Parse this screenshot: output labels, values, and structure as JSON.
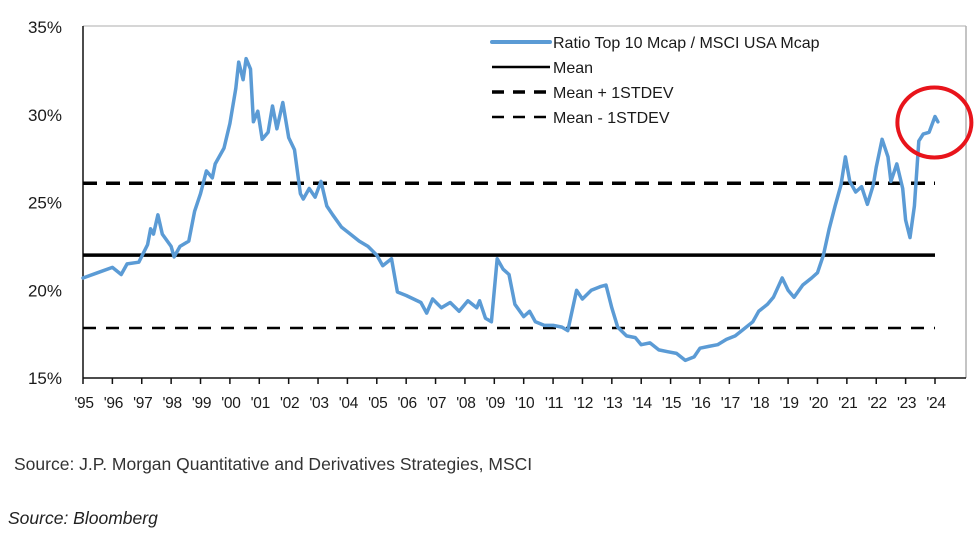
{
  "chart_data": {
    "type": "line",
    "title": "",
    "xlabel": "",
    "ylabel": "",
    "ylim": [
      15,
      35
    ],
    "xlim": [
      1995,
      2024
    ],
    "y_ticks": [
      "15%",
      "20%",
      "25%",
      "30%",
      "35%"
    ],
    "y_tick_values": [
      15,
      20,
      25,
      30,
      35
    ],
    "x_ticks": [
      "'95",
      "'96",
      "'97",
      "'98",
      "'99",
      "'00",
      "'01",
      "'02",
      "'03",
      "'04",
      "'05",
      "'06",
      "'07",
      "'08",
      "'09",
      "'10",
      "'11",
      "'12",
      "'13",
      "'14",
      "'15",
      "'16",
      "'17",
      "'18",
      "'19",
      "'20",
      "'21",
      "'22",
      "'23",
      "'24"
    ],
    "x_tick_values": [
      1995,
      1996,
      1997,
      1998,
      1999,
      2000,
      2001,
      2002,
      2003,
      2004,
      2005,
      2006,
      2007,
      2008,
      2009,
      2010,
      2011,
      2012,
      2013,
      2014,
      2015,
      2016,
      2017,
      2018,
      2019,
      2020,
      2021,
      2022,
      2023,
      2024
    ],
    "grid": false,
    "legend_position": "top-right",
    "series": [
      {
        "name": "Ratio Top 10 Mcap / MSCI USA Mcap",
        "color": "#5b9bd5",
        "style": "solid",
        "x": [
          1995.0,
          1995.5,
          1996.0,
          1996.3,
          1996.5,
          1996.9,
          1997.2,
          1997.3,
          1997.4,
          1997.55,
          1997.7,
          1998.0,
          1998.1,
          1998.3,
          1998.6,
          1998.8,
          1999.0,
          1999.2,
          1999.4,
          1999.5,
          1999.8,
          2000.0,
          2000.2,
          2000.3,
          2000.45,
          2000.55,
          2000.7,
          2000.8,
          2000.95,
          2001.1,
          2001.3,
          2001.45,
          2001.6,
          2001.8,
          2002.0,
          2002.2,
          2002.4,
          2002.5,
          2002.7,
          2002.9,
          2003.1,
          2003.3,
          2003.5,
          2003.8,
          2004.1,
          2004.4,
          2004.7,
          2005.0,
          2005.2,
          2005.5,
          2005.7,
          2006.0,
          2006.5,
          2006.7,
          2006.9,
          2007.2,
          2007.5,
          2007.8,
          2008.1,
          2008.4,
          2008.5,
          2008.7,
          2008.9,
          2009.1,
          2009.3,
          2009.5,
          2009.7,
          2010.0,
          2010.2,
          2010.4,
          2010.7,
          2011.0,
          2011.3,
          2011.5,
          2011.8,
          2012.0,
          2012.3,
          2012.6,
          2012.8,
          2013.0,
          2013.2,
          2013.5,
          2013.8,
          2014.0,
          2014.3,
          2014.6,
          2014.9,
          2015.2,
          2015.5,
          2015.8,
          2016.0,
          2016.3,
          2016.6,
          2016.9,
          2017.2,
          2017.5,
          2017.8,
          2018.0,
          2018.3,
          2018.5,
          2018.8,
          2019.0,
          2019.2,
          2019.5,
          2019.8,
          2020.0,
          2020.2,
          2020.4,
          2020.6,
          2020.8,
          2020.95,
          2021.1,
          2021.3,
          2021.5,
          2021.7,
          2021.9,
          2022.0,
          2022.2,
          2022.4,
          2022.5,
          2022.7,
          2022.9,
          2023.0,
          2023.15,
          2023.3,
          2023.45,
          2023.6,
          2023.8,
          2024.0,
          2024.1
        ],
        "values": [
          20.7,
          21.0,
          21.3,
          20.9,
          21.5,
          21.6,
          22.6,
          23.5,
          23.2,
          24.3,
          23.2,
          22.5,
          21.9,
          22.5,
          22.8,
          24.5,
          25.5,
          26.8,
          26.4,
          27.2,
          28.1,
          29.5,
          31.5,
          33.0,
          32.0,
          33.2,
          32.6,
          29.6,
          30.2,
          28.6,
          29.0,
          30.5,
          29.2,
          30.7,
          28.7,
          28.0,
          25.5,
          25.2,
          25.8,
          25.3,
          26.2,
          24.8,
          24.3,
          23.6,
          23.2,
          22.8,
          22.5,
          22.0,
          21.4,
          21.8,
          19.9,
          19.7,
          19.3,
          18.7,
          19.5,
          19.0,
          19.3,
          18.8,
          19.4,
          19.0,
          19.4,
          18.4,
          18.2,
          21.8,
          21.2,
          20.9,
          19.2,
          18.5,
          18.8,
          18.2,
          18.0,
          18.0,
          17.9,
          17.7,
          20.0,
          19.5,
          20.0,
          20.2,
          20.3,
          19.0,
          17.9,
          17.4,
          17.3,
          16.9,
          17.0,
          16.6,
          16.5,
          16.4,
          16.0,
          16.2,
          16.7,
          16.8,
          16.9,
          17.2,
          17.4,
          17.8,
          18.2,
          18.8,
          19.2,
          19.6,
          20.7,
          20.0,
          19.6,
          20.3,
          20.7,
          21.0,
          22.0,
          23.5,
          24.8,
          26.0,
          27.6,
          26.2,
          25.6,
          25.9,
          24.9,
          26.0,
          27.0,
          28.6,
          27.6,
          26.2,
          27.2,
          25.8,
          24.0,
          23.0,
          24.8,
          28.5,
          28.9,
          29.0,
          29.9,
          29.6
        ]
      },
      {
        "name": "Mean",
        "color": "#000000",
        "style": "solid",
        "value": 22.0
      },
      {
        "name": "Mean + 1STDEV",
        "color": "#000000",
        "style": "dashed-thick",
        "value": 26.1
      },
      {
        "name": "Mean - 1STDEV",
        "color": "#000000",
        "style": "dashed",
        "value": 17.85
      }
    ],
    "annotations": [
      {
        "type": "circle",
        "color": "#e8141b",
        "around": "latest values (2023-2024)"
      }
    ]
  },
  "sources": {
    "line1": "Source: J.P. Morgan Quantitative and Derivatives Strategies, MSCI",
    "line2": "Source: Bloomberg"
  }
}
